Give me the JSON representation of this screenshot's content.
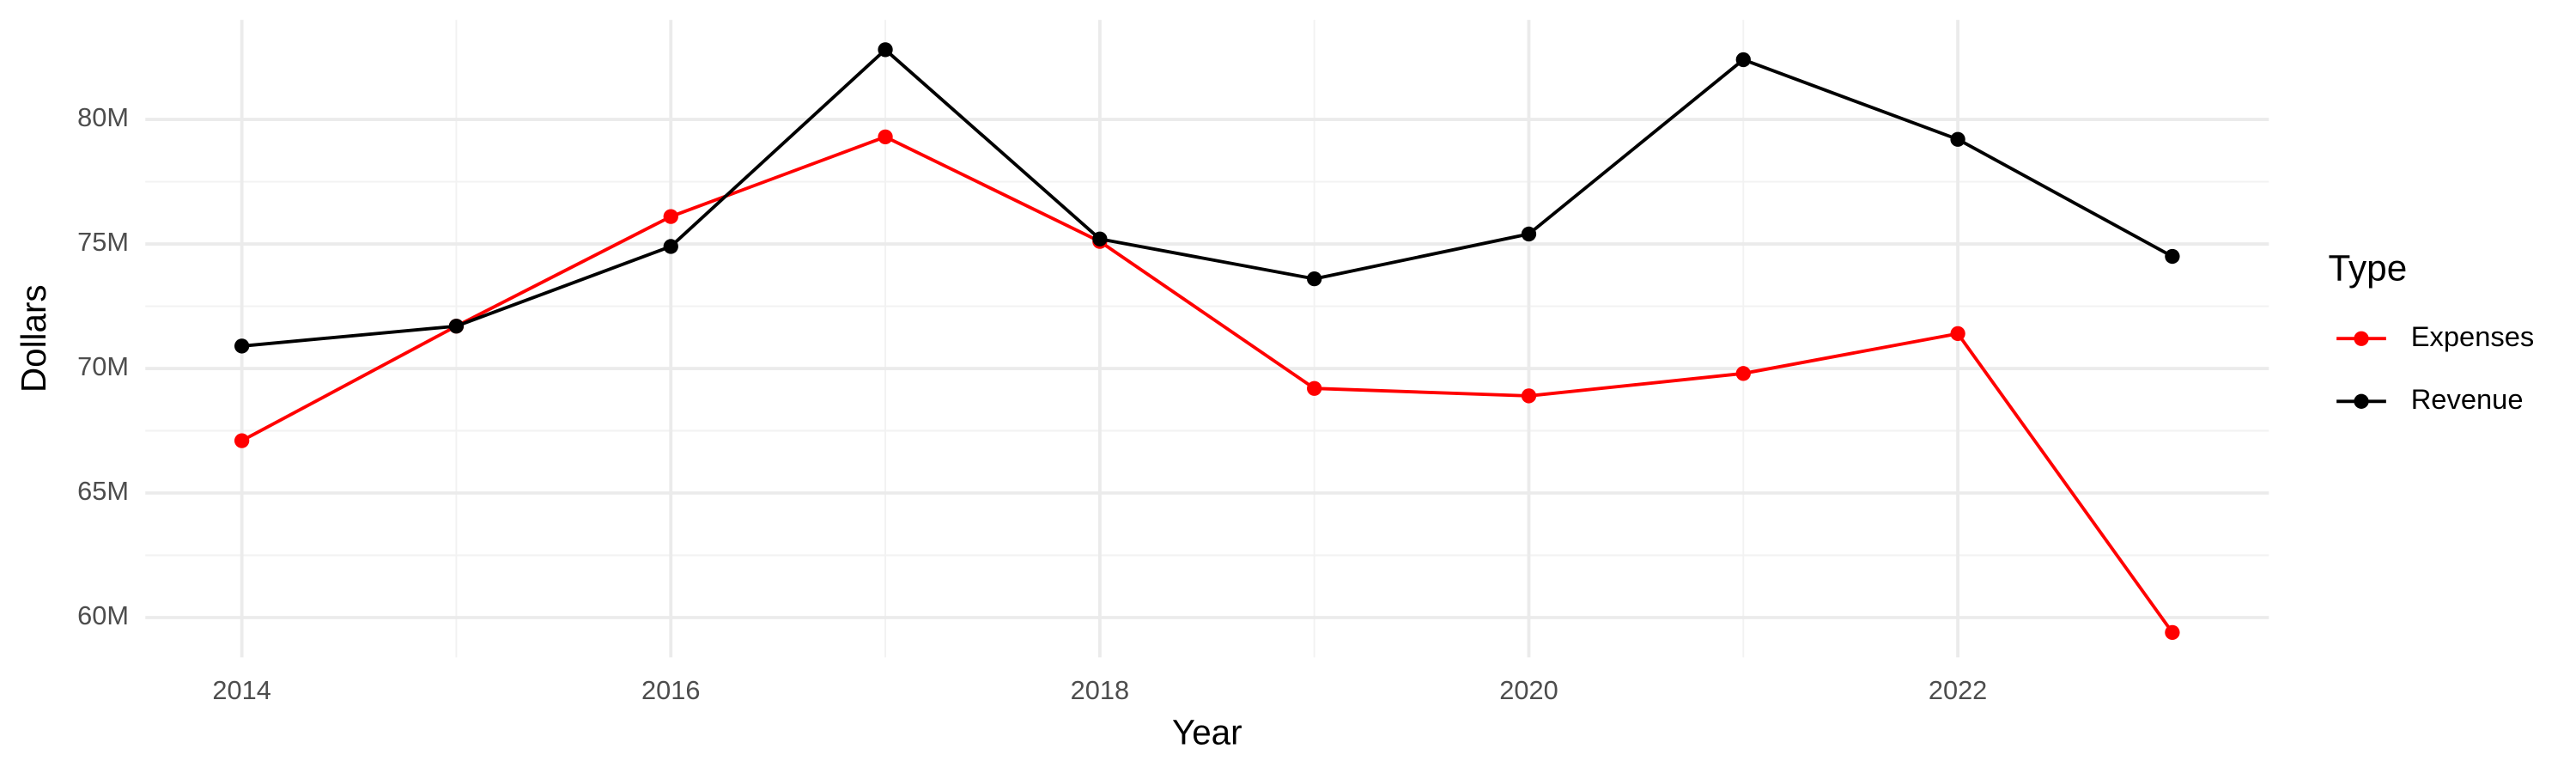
{
  "chart_data": {
    "type": "line",
    "x_label": "Year",
    "y_label": "Dollars",
    "legend_title": "Type",
    "legend_position": "right",
    "grid": true,
    "x": [
      2014,
      2015,
      2016,
      2017,
      2018,
      2019,
      2020,
      2021,
      2022,
      2023
    ],
    "series": [
      {
        "name": "Expenses",
        "color": "#ff0000",
        "values": [
          67100000,
          71700000,
          76100000,
          79300000,
          75100000,
          69200000,
          68900000,
          69800000,
          71400000,
          59400000
        ]
      },
      {
        "name": "Revenue",
        "color": "#000000",
        "values": [
          70900000,
          71700000,
          74900000,
          82800000,
          75200000,
          73600000,
          75400000,
          82400000,
          79200000,
          74500000
        ]
      }
    ],
    "xlim": [
      2013.55,
      2023.45
    ],
    "xticks": [
      2014,
      2016,
      2018,
      2020,
      2022
    ],
    "ylim": [
      58400000,
      84000000
    ],
    "yticks": [
      {
        "value": 60000000,
        "label": "60M"
      },
      {
        "value": 65000000,
        "label": "65M"
      },
      {
        "value": 70000000,
        "label": "70M"
      },
      {
        "value": 75000000,
        "label": "75M"
      },
      {
        "value": 80000000,
        "label": "80M"
      }
    ]
  }
}
